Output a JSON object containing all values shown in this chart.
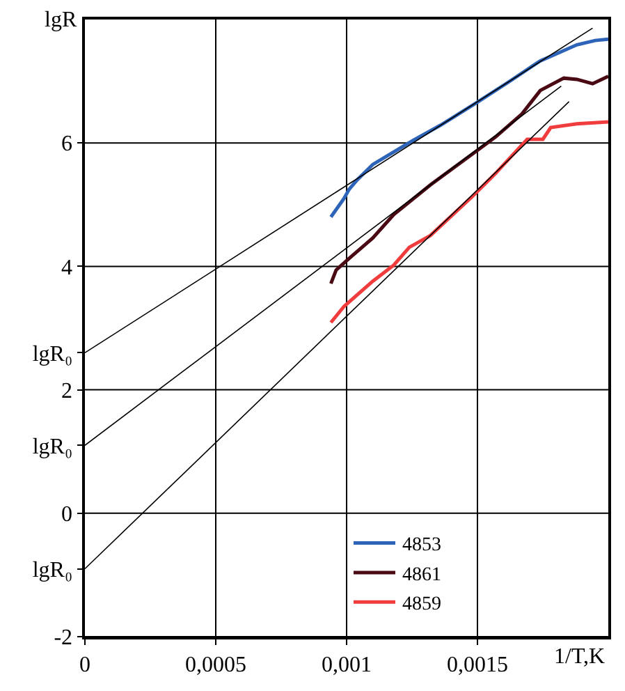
{
  "chart_data": {
    "type": "line",
    "xlabel": "1/T,K",
    "ylabel": "lgR",
    "xlim": [
      0,
      0.002
    ],
    "ylim": [
      -2,
      8
    ],
    "xticks": [
      0,
      {
        "value": 0.0005,
        "label": "0,0005"
      },
      {
        "value": 0.001,
        "label": "0,001"
      },
      {
        "value": 0.0015,
        "label": "0,0015"
      }
    ],
    "yticks": [
      -2,
      {
        "value": -0.9,
        "label": "lgR₀"
      },
      0,
      {
        "value": 1.1,
        "label": "lgR₀"
      },
      2,
      {
        "value": 2.6,
        "label": "lgR₀"
      },
      4,
      6
    ],
    "grid": true,
    "legend": "bottom",
    "line_style": "solid",
    "marker": "none",
    "series": [
      {
        "name": "4853",
        "color": "#2e64b8",
        "x": [
          0.00094,
          0.00099,
          0.00101,
          0.00104,
          0.0011,
          0.00125,
          0.00136,
          0.0015,
          0.00162,
          0.00174,
          0.00188,
          0.00195,
          0.002
        ],
        "values": [
          4.8,
          5.1,
          5.25,
          5.4,
          5.65,
          6.03,
          6.29,
          6.66,
          6.99,
          7.33,
          7.59,
          7.66,
          7.68
        ]
      },
      {
        "name": "4861",
        "color": "#4a0a14",
        "x": [
          0.00094,
          0.00096,
          0.00101,
          0.0011,
          0.00118,
          0.00132,
          0.0015,
          0.00157,
          0.00167,
          0.00174,
          0.00183,
          0.00188,
          0.00194,
          0.002
        ],
        "values": [
          3.72,
          3.94,
          4.13,
          4.46,
          4.84,
          5.32,
          5.88,
          6.1,
          6.47,
          6.85,
          7.05,
          7.03,
          6.96,
          7.08
        ]
      },
      {
        "name": "4859",
        "color": "#f03c3c",
        "x": [
          0.00094,
          0.00099,
          0.0011,
          0.00118,
          0.00124,
          0.00132,
          0.00148,
          0.00157,
          0.00169,
          0.00175,
          0.00178,
          0.00188,
          0.002
        ],
        "values": [
          3.09,
          3.35,
          3.76,
          4.02,
          4.31,
          4.5,
          5.13,
          5.51,
          6.06,
          6.06,
          6.25,
          6.31,
          6.34
        ]
      },
      {
        "color": "#000000",
        "x": [
          0,
          0.00194
        ],
        "values": [
          2.6,
          7.86
        ]
      },
      {
        "color": "#000000",
        "x": [
          0,
          0.00182
        ],
        "values": [
          1.1,
          6.92
        ]
      },
      {
        "color": "#000000",
        "x": [
          0,
          0.00185
        ],
        "values": [
          -0.9,
          6.67
        ]
      }
    ]
  }
}
